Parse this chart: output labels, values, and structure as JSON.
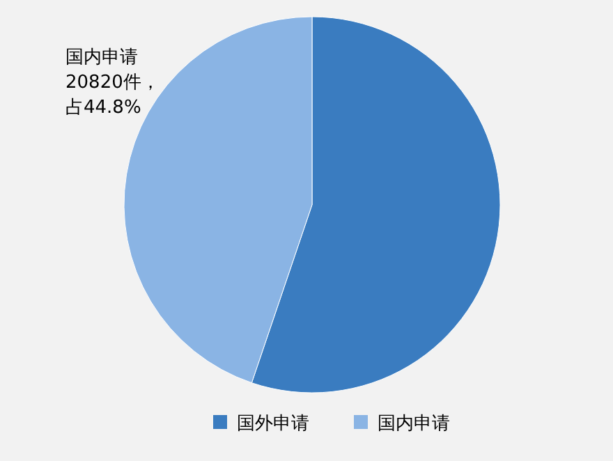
{
  "chart_data": {
    "type": "pie",
    "categories": [
      "国外申请",
      "国内申请"
    ],
    "values": [
      55.2,
      44.8
    ],
    "colors": [
      "#3a7cc0",
      "#8ab4e4"
    ],
    "annotations": [
      "国内申请",
      "20820件，",
      "占44.8%"
    ],
    "legend": "bottom"
  }
}
